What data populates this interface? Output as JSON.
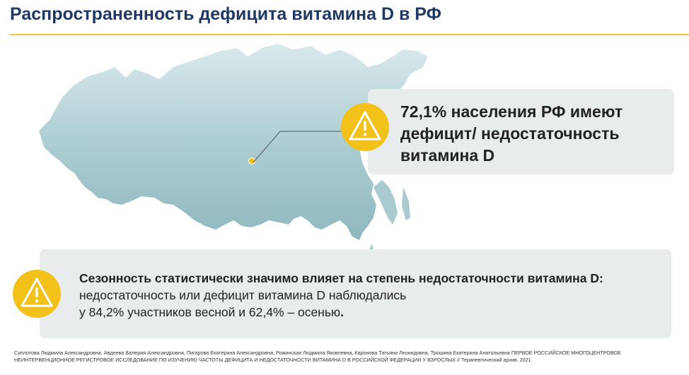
{
  "slide": {
    "title": "Распространенность дефицита витамина D в РФ"
  },
  "callout_top": {
    "icon": "warning-icon",
    "text": "72,1% населения РФ имеют дефицит/ недостаточность витамина D"
  },
  "callout_bottom": {
    "icon": "warning-icon",
    "heading": "Сезонность статистически значимо влияет на степень недостаточности витамина D:",
    "line2": "недостаточность или дефицит витамина D наблюдались",
    "line3": "у 84,2% участников весной и 62,4% – осенью",
    "line3_end": "."
  },
  "footnote": {
    "text": "Суплотова Людмила Александровна, Авдеева Валерия Александровна, Пигарова Екатерина Александровна, Рожинская Людмила Яковлевна, Каронова Татьяна Леонидовна, Трошина Екатерина Анатольевна ПЕРВОЕ РОССИЙСКОЕ МНОГОЦЕНТРОВОЕ НЕИНТЕРВЕНЦИОННОЕ РЕГИСТРОВОЕ ИССЛЕДОВАНИЕ ПО ИЗУЧЕНИЮ ЧАСТОТЫ ДЕФИЦИТА И НЕДОСТАТОЧНОСТИ ВИТАМИНА D В РОССИЙСКОЙ ФЕДЕРАЦИИ У ВЗРОСЛЫХ // Терапевтический архив. 2021."
  },
  "colors": {
    "title": "#1f3864",
    "accent": "#f2c21b",
    "card": "#e8ecec",
    "map": "#a9cbd0"
  }
}
